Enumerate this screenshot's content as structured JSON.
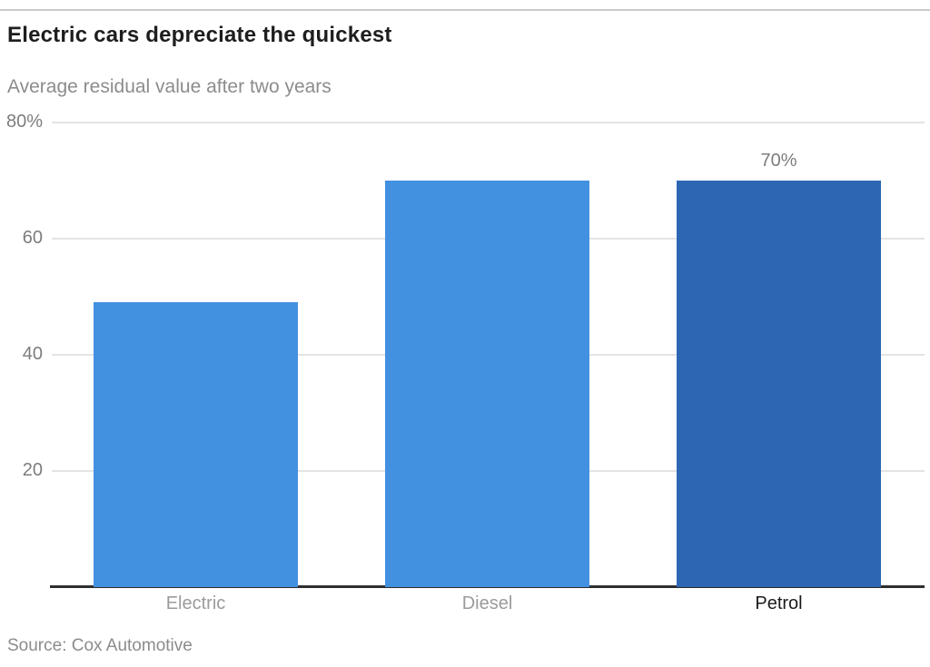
{
  "header": {
    "title": "Electric cars depreciate the quickest",
    "subtitle": "Average residual value after two years"
  },
  "source": "Source: Cox Automotive",
  "colors": {
    "bar_default": "#4290E0",
    "bar_highlight": "#2D66B2",
    "category_label_gray": "#9b9b9b",
    "category_label_dark": "#1a1a1a",
    "tick_label": "#7d7d7d",
    "value_label": "#7d7d7d"
  },
  "chart_data": {
    "type": "bar",
    "title": "Electric cars depreciate the quickest",
    "subtitle": "Average residual value after two years",
    "categories": [
      "Electric",
      "Diesel",
      "Petrol"
    ],
    "values": [
      49,
      70,
      70
    ],
    "bar_labels": [
      "",
      "",
      "70%"
    ],
    "bar_colors": [
      "#4290E0",
      "#4290E0",
      "#2D66B2"
    ],
    "highlight_category": "Petrol",
    "xlabel": "",
    "ylabel": "",
    "ylim": [
      0,
      80
    ],
    "yticks": [
      {
        "value": 80,
        "label": "80%"
      },
      {
        "value": 60,
        "label": "60"
      },
      {
        "value": 40,
        "label": "40"
      },
      {
        "value": 20,
        "label": "20"
      }
    ],
    "grid": true,
    "legend": false,
    "source": "Source: Cox Automotive"
  }
}
